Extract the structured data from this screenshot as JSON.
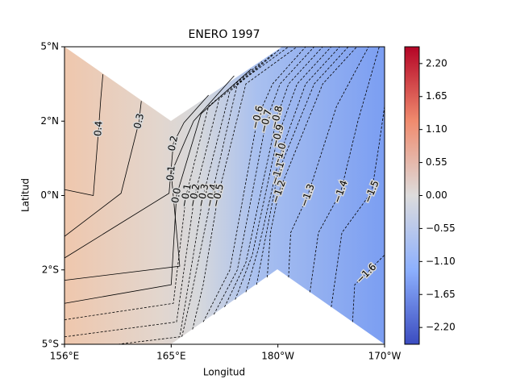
{
  "chart_data": {
    "type": "contour",
    "title": "ENERO 1997",
    "x_label": "Longitud",
    "y_label": "Latitud",
    "x_categories": [
      "156°E",
      "165°E",
      "180°W",
      "170°W"
    ],
    "y_categories": [
      "5°S",
      "2°S",
      "0°N",
      "2°N",
      "5°N"
    ],
    "colorbar": {
      "ylim": [
        -2.48,
        2.48
      ],
      "yticks": [
        {
          "value": 2.2,
          "label": "2.20"
        },
        {
          "value": 1.65,
          "label": "1.65"
        },
        {
          "value": 1.1,
          "label": "1.10"
        },
        {
          "value": 0.55,
          "label": "0.55"
        },
        {
          "value": 0,
          "label": "0.00"
        },
        {
          "value": -0.55,
          "label": "−0.55"
        },
        {
          "value": -1.1,
          "label": "−1.10"
        },
        {
          "value": -1.65,
          "label": "−1.65"
        },
        {
          "value": -2.2,
          "label": "−2.20"
        }
      ]
    },
    "contours": [
      {
        "level": 0.4,
        "points": [
          [
            0,
            2.08
          ],
          [
            0.27,
            2.0
          ],
          [
            0.32,
            2.9
          ],
          [
            0.34,
            3.3
          ],
          [
            0.36,
            3.63
          ]
        ]
      },
      {
        "level": 0.3,
        "points": [
          [
            0,
            1.45
          ],
          [
            0.53,
            2.03
          ],
          [
            0.7,
            3.0
          ],
          [
            0.71,
            3.15
          ],
          [
            0.72,
            3.27
          ]
        ]
      },
      {
        "level": 0.2,
        "points": [
          [
            0,
            1.16
          ],
          [
            0.98,
            2.03
          ],
          [
            1.02,
            2.7
          ],
          [
            1.12,
            2.98
          ],
          [
            1.35,
            3.35
          ]
        ]
      },
      {
        "level": 0.1,
        "points": [
          [
            0,
            0.86
          ],
          [
            1.08,
            1.05
          ],
          [
            1.0,
            2.3
          ],
          [
            1.21,
            3.0
          ],
          [
            1.59,
            3.61
          ]
        ]
      },
      {
        "level": {
          "value": 0,
          "label": "0.0"
        },
        "points": [
          [
            0,
            0.55
          ],
          [
            1.0,
            0.8
          ],
          [
            1.05,
            2.0
          ],
          [
            1.28,
            3.1
          ],
          [
            1.75,
            3.7
          ]
        ]
      },
      {
        "level": {
          "value": -0.1,
          "label": "−0.1"
        },
        "points": [
          [
            0,
            0.33
          ],
          [
            1.02,
            0.55
          ],
          [
            1.14,
            2.0
          ],
          [
            1.35,
            3.2
          ],
          [
            1.85,
            3.8
          ]
        ]
      },
      {
        "level": {
          "value": -0.2,
          "label": "−0.2"
        },
        "points": [
          [
            0,
            0.1
          ],
          [
            1.05,
            0.3
          ],
          [
            1.22,
            2.0
          ],
          [
            1.45,
            3.3
          ],
          [
            1.95,
            3.9
          ]
        ]
      },
      {
        "level": {
          "value": -0.3,
          "label": "−0.3"
        },
        "points": [
          [
            0.5,
            0
          ],
          [
            1.08,
            0.1
          ],
          [
            1.3,
            2.0
          ],
          [
            1.55,
            3.4
          ],
          [
            2.02,
            3.97
          ]
        ]
      },
      {
        "level": {
          "value": -0.4,
          "label": "−0.4"
        },
        "points": [
          [
            1.1,
            0.1
          ],
          [
            1.18,
            0.6
          ],
          [
            1.38,
            2.0
          ],
          [
            1.62,
            3.5
          ],
          [
            2.1,
            4
          ]
        ]
      },
      {
        "level": {
          "value": -0.5,
          "label": "−0.5"
        },
        "points": [
          [
            1.2,
            0.2
          ],
          [
            1.3,
            0.8
          ],
          [
            1.44,
            2.0
          ],
          [
            1.7,
            3.5
          ],
          [
            2.18,
            4
          ]
        ]
      },
      {
        "level": {
          "value": -0.6,
          "label": "−0.6"
        },
        "points": [
          [
            1.3,
            0.3
          ],
          [
            1.55,
            1.0
          ],
          [
            1.81,
            3.05
          ],
          [
            1.95,
            3.5
          ],
          [
            2.26,
            4
          ]
        ]
      },
      {
        "level": {
          "value": -0.7,
          "label": "−0.7"
        },
        "points": [
          [
            1.4,
            0.4
          ],
          [
            1.62,
            1.0
          ],
          [
            1.89,
            3.0
          ],
          [
            2.02,
            3.5
          ],
          [
            2.34,
            4
          ]
        ]
      },
      {
        "level": {
          "value": -0.8,
          "label": "−0.8"
        },
        "points": [
          [
            1.5,
            0.5
          ],
          [
            1.7,
            1.1
          ],
          [
            1.99,
            3.05
          ],
          [
            2.1,
            3.5
          ],
          [
            2.42,
            4
          ]
        ]
      },
      {
        "level": {
          "value": -0.9,
          "label": "−0.9"
        },
        "points": [
          [
            1.6,
            0.6
          ],
          [
            1.76,
            1.2
          ],
          [
            2.0,
            2.8
          ],
          [
            2.18,
            3.5
          ],
          [
            2.5,
            4
          ]
        ]
      },
      {
        "level": {
          "value": -1.0,
          "label": "−1.0"
        },
        "points": [
          [
            1.7,
            0.7
          ],
          [
            1.82,
            1.3
          ],
          [
            2.02,
            2.55
          ],
          [
            2.26,
            3.5
          ],
          [
            2.58,
            4
          ]
        ]
      },
      {
        "level": {
          "value": -1.1,
          "label": "−1.1"
        },
        "points": [
          [
            1.8,
            0.8
          ],
          [
            1.88,
            1.4
          ],
          [
            2.0,
            2.3
          ],
          [
            2.34,
            3.5
          ],
          [
            2.66,
            4
          ]
        ]
      },
      {
        "level": {
          "value": -1.2,
          "label": "−1.2"
        },
        "points": [
          [
            1.9,
            0.9
          ],
          [
            1.93,
            1.5
          ],
          [
            2.01,
            2.05
          ],
          [
            2.42,
            3.5
          ],
          [
            2.74,
            4
          ]
        ]
      },
      {
        "level": {
          "value": -1.3,
          "label": "−1.3"
        },
        "points": [
          [
            2.1,
            0.9
          ],
          [
            2.12,
            1.5
          ],
          [
            2.28,
            2.0
          ],
          [
            2.55,
            3.2
          ],
          [
            2.85,
            4
          ]
        ]
      },
      {
        "level": {
          "value": -1.4,
          "label": "−1.4"
        },
        "points": [
          [
            2.3,
            0.7
          ],
          [
            2.38,
            1.5
          ],
          [
            2.59,
            2.05
          ],
          [
            2.75,
            3.0
          ],
          [
            2.95,
            4
          ]
        ]
      },
      {
        "level": {
          "value": -1.5,
          "label": "−1.5"
        },
        "points": [
          [
            2.5,
            0.5
          ],
          [
            2.6,
            1.5
          ],
          [
            2.88,
            2.05
          ],
          [
            2.95,
            2.7
          ],
          [
            3,
            3.2
          ]
        ]
      },
      {
        "level": {
          "value": -1.6,
          "label": "−1.6"
        },
        "points": [
          [
            2.7,
            0.3
          ],
          [
            2.72,
            0.8
          ],
          [
            2.83,
            0.95
          ],
          [
            2.93,
            1.1
          ],
          [
            3,
            1.2
          ]
        ]
      }
    ]
  }
}
